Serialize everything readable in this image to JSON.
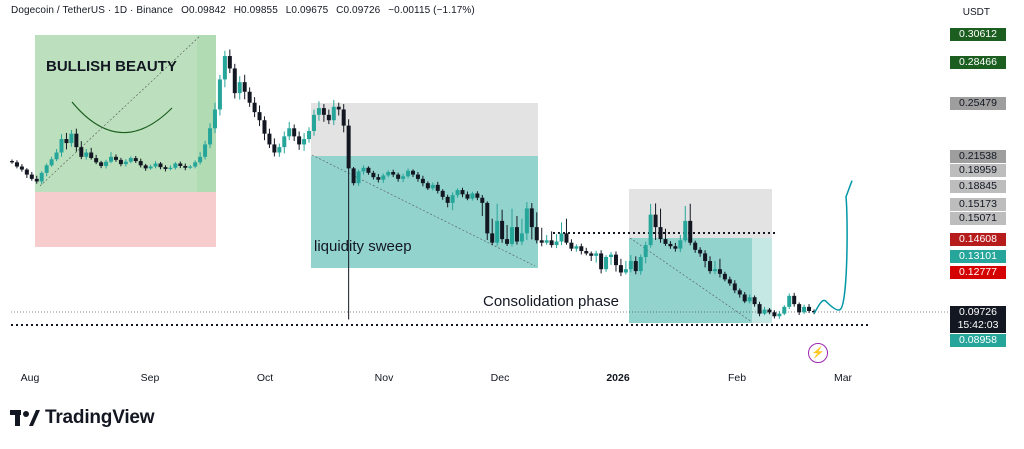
{
  "header": {
    "symbol": "Dogecoin / TetherUS · 1D · Binance",
    "open": "O0.09842",
    "high": "H0.09855",
    "low": "L0.09675",
    "close": "C0.09726",
    "change": "−0.00115 (−1.17%)"
  },
  "currency": "USDT",
  "price_labels": [
    {
      "value": "0.30612",
      "bg": "#1b5e20"
    },
    {
      "value": "0.28466",
      "bg": "#1b5e20"
    },
    {
      "value": "0.25479",
      "bg": "#9e9e9e"
    },
    {
      "value": "0.21538",
      "bg": "#9e9e9e"
    },
    {
      "value": "0.18959",
      "bg": "#bdbdbd"
    },
    {
      "value": "0.18845",
      "bg": "#bdbdbd"
    },
    {
      "value": "0.15173",
      "bg": "#bdbdbd"
    },
    {
      "value": "0.15071",
      "bg": "#bdbdbd"
    },
    {
      "value": "0.14608",
      "bg": "#b71c1c"
    },
    {
      "value": "0.13101",
      "bg": "#26a69a"
    },
    {
      "value": "0.12777",
      "bg": "#d50000"
    },
    {
      "value": "0.08958",
      "bg": "#26a69a"
    }
  ],
  "current_price": "0.09726",
  "countdown": "15:42:03",
  "annotations": {
    "bullish": "BULLISH BEAUTY",
    "liquidity": "liquidity sweep",
    "consolidation": "Consolidation phase"
  },
  "branding": "TradingView",
  "colors": {
    "up": "#26a69a",
    "down": "#131722",
    "forecast": "#0097a7",
    "bullish_zone": "#a5d6a7",
    "target_zone": "#80cbc4",
    "stop_zone": "#ef9a9a",
    "grey_zone": "#e0e0e0"
  },
  "chart_data": {
    "type": "candlestick",
    "interval": "1D",
    "x_ticks": [
      "Aug",
      "Sep",
      "Oct",
      "Nov",
      "Dec",
      "2026",
      "Feb",
      "Mar"
    ],
    "price_axis": [
      "0.30612",
      "0.28466",
      "0.25479",
      "0.21538",
      "0.18959",
      "0.18845",
      "0.15173",
      "0.15071",
      "0.14608",
      "0.13101",
      "0.12777",
      "0.09726",
      "0.08958"
    ],
    "last": {
      "open": 0.09842,
      "high": 0.09855,
      "low": 0.09675,
      "close": 0.09726
    },
    "closes": [
      0.205,
      0.198,
      0.193,
      0.186,
      0.181,
      0.178,
      0.188,
      0.2,
      0.21,
      0.218,
      0.228,
      0.225,
      0.232,
      0.222,
      0.214,
      0.218,
      0.212,
      0.205,
      0.199,
      0.206,
      0.214,
      0.209,
      0.202,
      0.206,
      0.212,
      0.207,
      0.2,
      0.195,
      0.198,
      0.203,
      0.197,
      0.194,
      0.196,
      0.203,
      0.199,
      0.196,
      0.198,
      0.205,
      0.214,
      0.224,
      0.236,
      0.25,
      0.272,
      0.29,
      0.28,
      0.262,
      0.27,
      0.263,
      0.255,
      0.248,
      0.242,
      0.232,
      0.224,
      0.218,
      0.222,
      0.23,
      0.236,
      0.23,
      0.224,
      0.228,
      0.234,
      0.246,
      0.251,
      0.246,
      0.242,
      0.252,
      0.25,
      0.238,
      0.195,
      0.176,
      0.19,
      0.196,
      0.188,
      0.183,
      0.18,
      0.185,
      0.189,
      0.186,
      0.181,
      0.184,
      0.191,
      0.186,
      0.181,
      0.176,
      0.17,
      0.174,
      0.167,
      0.16,
      0.153,
      0.162,
      0.168,
      0.163,
      0.158,
      0.164,
      0.159,
      0.153,
      0.147,
      0.143,
      0.149,
      0.146,
      0.142,
      0.148,
      0.144,
      0.147,
      0.151,
      0.148,
      0.145,
      0.143,
      0.145,
      0.141,
      0.144,
      0.147,
      0.143,
      0.138,
      0.14,
      0.136,
      0.134,
      0.132,
      0.134,
      0.128,
      0.131,
      0.133,
      0.129,
      0.126,
      0.128,
      0.13,
      0.127,
      0.131,
      0.141,
      0.15,
      0.148,
      0.146,
      0.142,
      0.14,
      0.138,
      0.145,
      0.149,
      0.143,
      0.137,
      0.134,
      0.13,
      0.127,
      0.128,
      0.125,
      0.121,
      0.118,
      0.113,
      0.11,
      0.105,
      0.108,
      0.103,
      0.096,
      0.099,
      0.097,
      0.094,
      0.096,
      0.101,
      0.109,
      0.103,
      0.097,
      0.101,
      0.098,
      0.09726
    ],
    "forecast": [
      0.0962,
      0.105,
      0.099,
      0.16,
      0.179
    ]
  }
}
